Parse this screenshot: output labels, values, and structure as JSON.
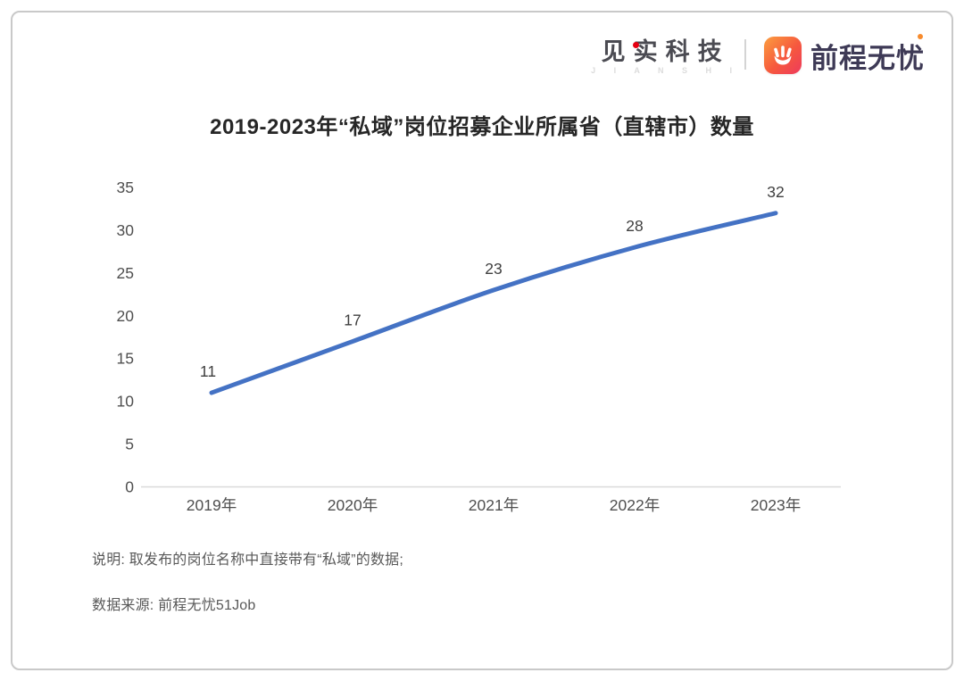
{
  "header": {
    "jianshi_logo": {
      "text": "见实科技",
      "subtext": "J I A N S H I"
    },
    "qcwy_logo": {
      "text": "前程无忧",
      "icon": "hand-app-icon"
    }
  },
  "chart_data": {
    "type": "line",
    "title": "2019-2023年“私域”岗位招募企业所属省（直辖市）数量",
    "categories": [
      "2019年",
      "2020年",
      "2021年",
      "2022年",
      "2023年"
    ],
    "series": [
      {
        "name": "私域岗位招募企业所属省（直辖市）数量",
        "values": [
          11,
          17,
          23,
          28,
          32
        ]
      }
    ],
    "y_ticks": [
      0,
      5,
      10,
      15,
      20,
      25,
      30,
      35
    ],
    "ylim": [
      0,
      35
    ],
    "xlabel": "",
    "ylabel": "",
    "grid": "baseline-only",
    "legend": "none",
    "smooth": true,
    "colors": {
      "line": "#4472C4",
      "data_label": "#3f3f3f",
      "axis_label": "#4f4f4f",
      "baseline": "#d9d9d9"
    }
  },
  "footnotes": [
    "说明: 取发布的岗位名称中直接带有“私域”的数据;",
    "数据来源: 前程无忧51Job"
  ]
}
